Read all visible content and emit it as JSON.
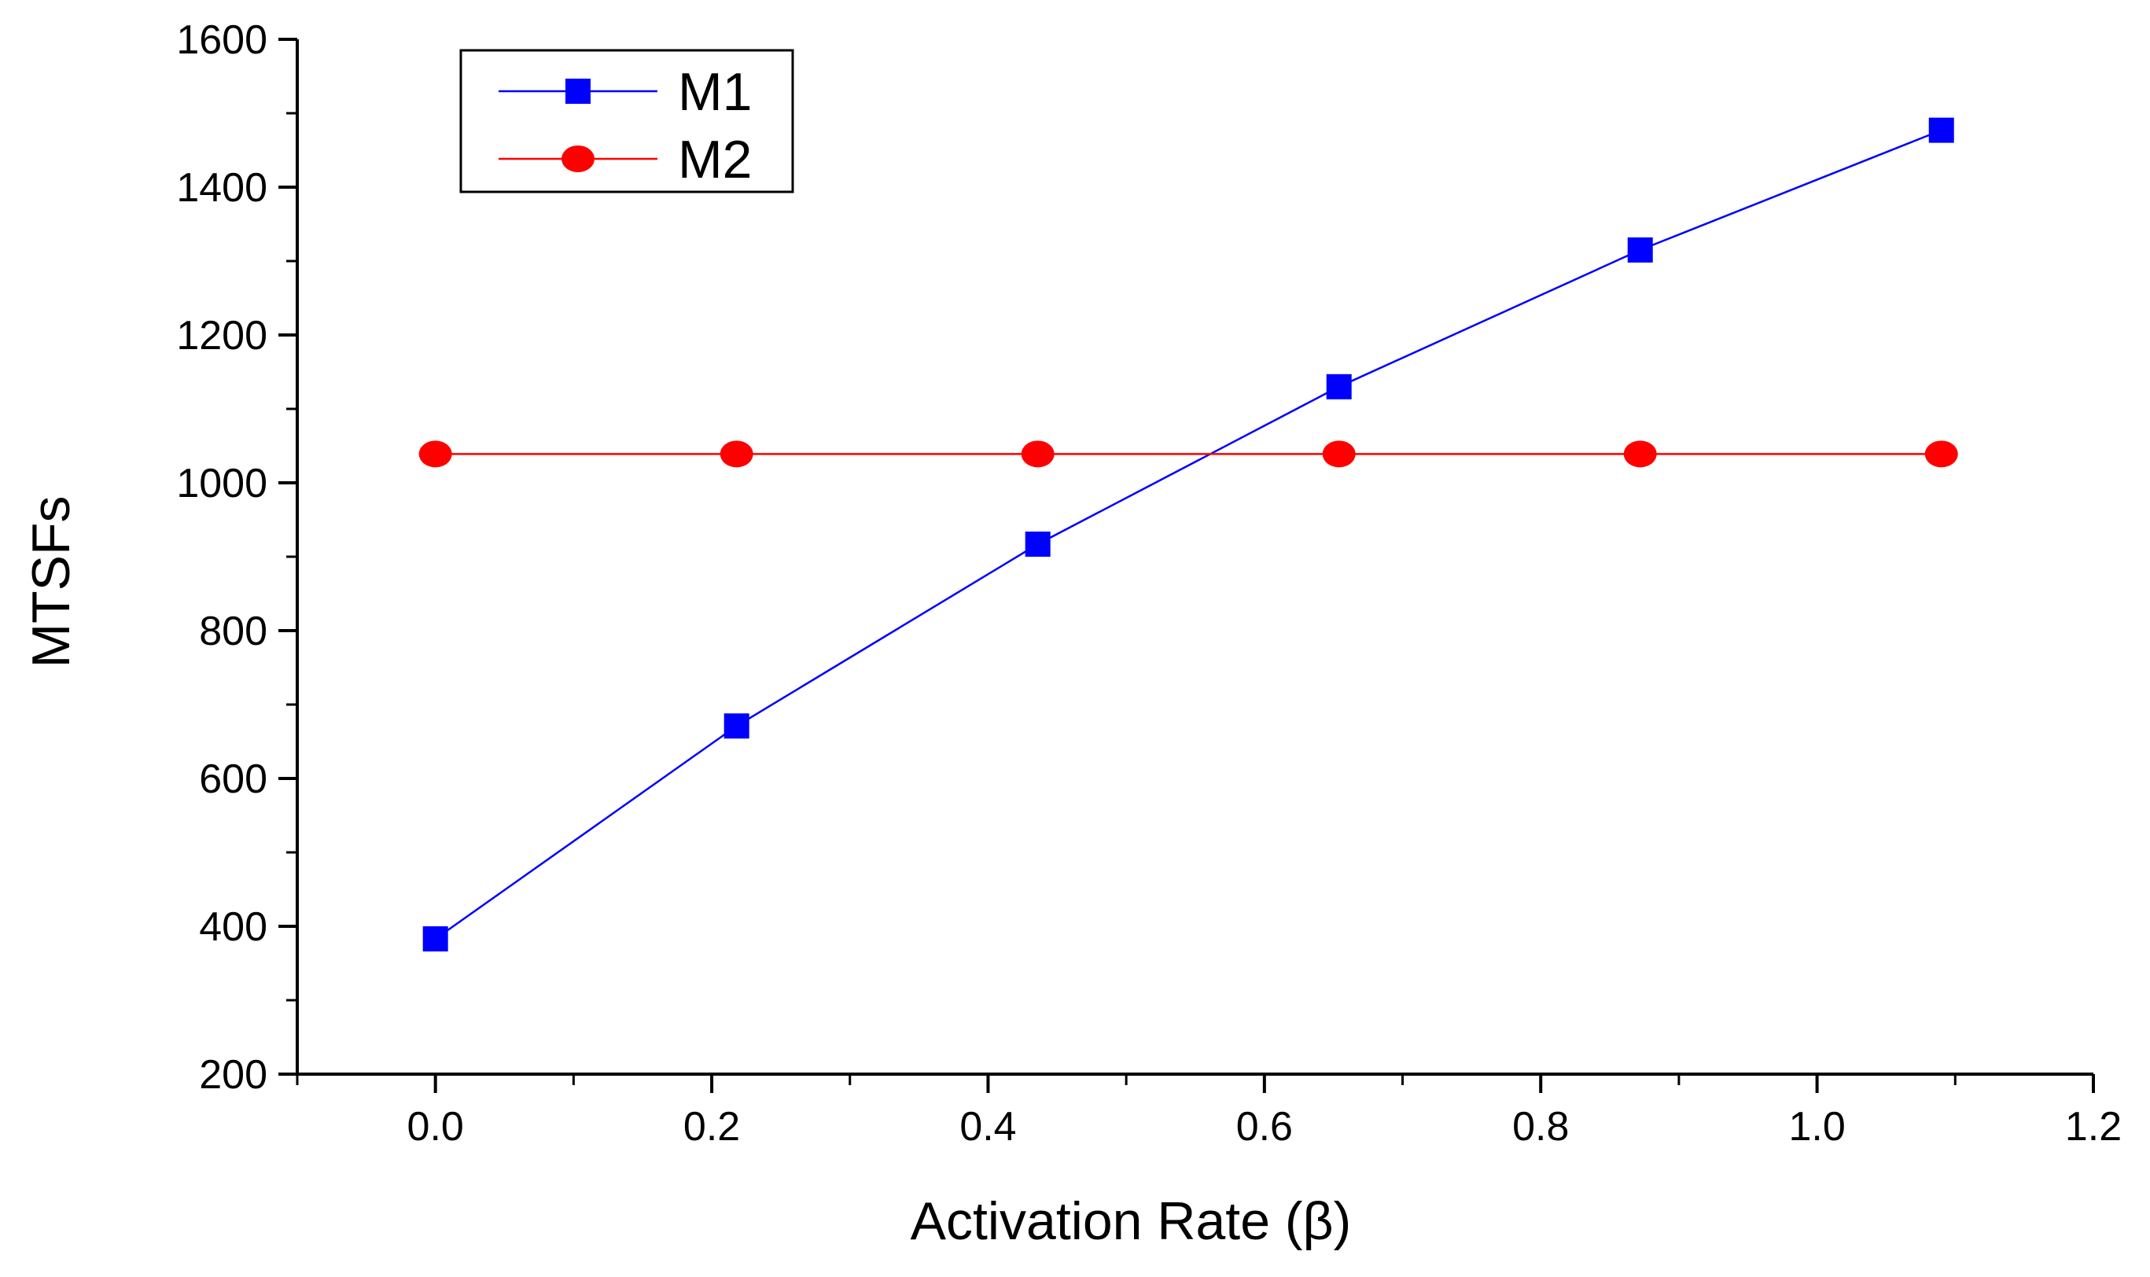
{
  "chart_data": {
    "type": "line",
    "xlabel": "Activation Rate (β)",
    "ylabel": "MTSFs",
    "xlim": [
      -0.1,
      1.2
    ],
    "ylim": [
      200,
      1600
    ],
    "x_ticks": [
      "0.0",
      "0.2",
      "0.4",
      "0.6",
      "0.8",
      "1.0",
      "1.2"
    ],
    "x_tick_values": [
      0.0,
      0.2,
      0.4,
      0.6,
      0.8,
      1.0,
      1.2
    ],
    "y_ticks": [
      "200",
      "400",
      "600",
      "800",
      "1000",
      "1200",
      "1400",
      "1600"
    ],
    "y_tick_values": [
      200,
      400,
      600,
      800,
      1000,
      1200,
      1400,
      1600
    ],
    "grid": false,
    "legend_position": "top-left",
    "series": [
      {
        "name": "M1",
        "marker": "square",
        "color": "#0000ff",
        "x": [
          0.0,
          0.218,
          0.436,
          0.654,
          0.872,
          1.09
        ],
        "y": [
          383,
          671,
          917,
          1130,
          1315,
          1477
        ]
      },
      {
        "name": "M2",
        "marker": "circle",
        "color": "#ff0000",
        "x": [
          0.0,
          0.218,
          0.436,
          0.654,
          0.872,
          1.09
        ],
        "y": [
          1039,
          1039,
          1039,
          1039,
          1039,
          1039
        ]
      }
    ]
  }
}
